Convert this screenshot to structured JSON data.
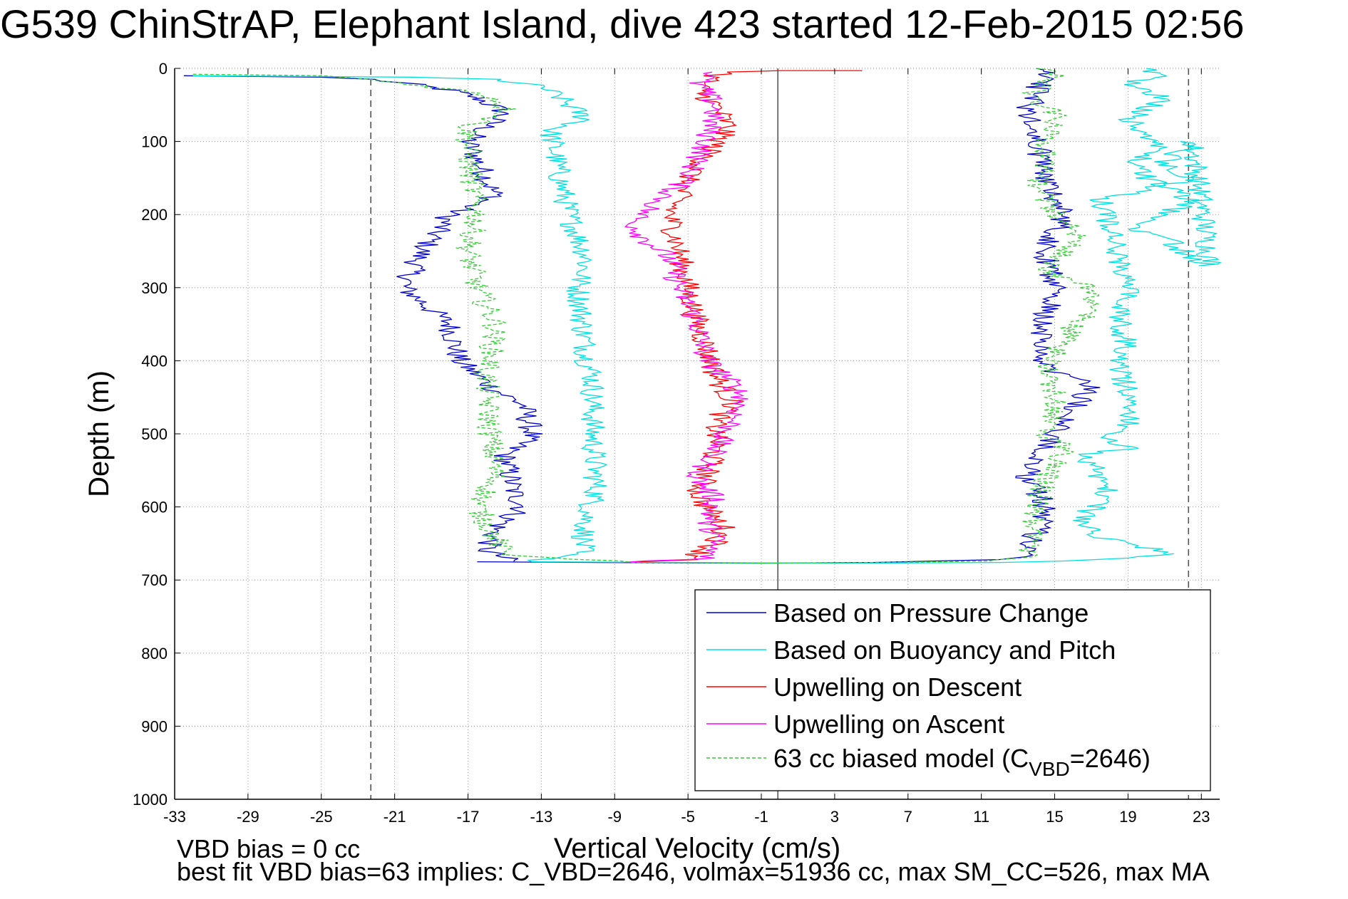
{
  "chart_data": {
    "type": "line",
    "title": "G539 ChinStrAP, Elephant Island, dive 423 started 12-Feb-2015 02:56",
    "xlabel": "Vertical Velocity (cm/s)",
    "ylabel": "Depth (m)",
    "xlim": [
      -33,
      24
    ],
    "ylim": [
      0,
      1000
    ],
    "y_reversed": true,
    "xticks": [
      -33,
      -29,
      -25,
      -21,
      -17,
      -13,
      -9,
      -5,
      -1,
      3,
      7,
      11,
      15,
      19,
      23
    ],
    "yticks": [
      0,
      100,
      200,
      300,
      400,
      500,
      600,
      700,
      800,
      900,
      1000
    ],
    "grid": true,
    "legend_position": "bottom-right",
    "reference_lines": {
      "dashed_x": [
        -22.3,
        22.3
      ],
      "solid_x": [
        -0.1
      ]
    },
    "series": [
      {
        "name": "Based on Pressure Change",
        "color": "#0000cc",
        "segments": [
          {
            "x": [
              -32.5,
              -25,
              -22.3,
              -20,
              -18,
              -16.5
            ],
            "y": [
              10,
              12,
              15,
              22,
              30,
              40
            ]
          },
          {
            "x": [
              -16.5,
              -15,
              -17,
              -16,
              -15.5,
              -18,
              -19.5,
              -20.5,
              -18,
              -17.5,
              -16.5,
              -15.5,
              -14,
              -13.5,
              -15,
              -14.5,
              -14,
              -15.5,
              -16,
              -14.5
            ],
            "y": [
              40,
              60,
              100,
              150,
              175,
              200,
              250,
              300,
              350,
              400,
              420,
              440,
              460,
              500,
              530,
              580,
              600,
              630,
              660,
              675
            ]
          },
          {
            "x": [
              -16.5,
              -10,
              -1,
              5,
              12,
              13.5
            ],
            "y": [
              675,
              676,
              677,
              676,
              672,
              668
            ]
          },
          {
            "x": [
              13.5,
              14.5,
              13.5,
              14.5,
              16,
              17,
              14.5,
              14,
              14.5,
              15,
              14.5,
              15.5,
              14.5,
              14,
              13.5,
              14,
              14.5,
              14
            ],
            "y": [
              668,
              600,
              560,
              520,
              470,
              430,
              410,
              380,
              340,
              300,
              250,
              200,
              150,
              100,
              60,
              30,
              10,
              0
            ]
          }
        ]
      },
      {
        "name": "Based on Buoyancy and Pitch",
        "color": "#00e0e0",
        "segments": [
          {
            "x": [
              -32,
              -20,
              -15.5,
              -13,
              -12,
              -11,
              -10.5,
              -12.5,
              -12,
              -11.5,
              -10.5,
              -11,
              -10.5,
              -10.2,
              -10.2,
              -10,
              -10.5,
              -10.8,
              -13.5
            ],
            "y": [
              10,
              12,
              15,
              25,
              40,
              60,
              70,
              85,
              150,
              200,
              260,
              300,
              400,
              420,
              500,
              580,
              610,
              660,
              675
            ]
          },
          {
            "x": [
              -13.5,
              -5,
              3,
              12,
              15.5,
              19,
              21.5
            ],
            "y": [
              675,
              676,
              677,
              676,
              674,
              670,
              664
            ]
          },
          {
            "x": [
              21.5,
              17,
              16.5,
              18,
              17.5,
              17,
              16.5,
              19,
              17.5,
              19,
              19,
              18.5,
              18.5,
              19,
              18.5,
              19,
              17.5,
              21,
              22.5,
              21,
              22.5,
              23.5,
              22,
              21,
              19.5,
              21,
              22.5,
              20,
              19,
              21,
              19,
              21,
              19,
              21,
              20
            ],
            "y": [
              664,
              640,
              610,
              590,
              560,
              540,
              530,
              520,
              505,
              490,
              440,
              410,
              395,
              380,
              345,
              300,
              180,
              160,
              150,
              130,
              100,
              270,
              250,
              230,
              220,
              200,
              180,
              150,
              130,
              110,
              70,
              40,
              20,
              8,
              0
            ]
          }
        ]
      },
      {
        "name": "Upwelling on Descent",
        "color": "#ff0000",
        "segments": [
          {
            "x": [
              4.5,
              0,
              -2.5,
              -3.5,
              -4.5,
              -3.5,
              -2.8,
              -4,
              -5,
              -6,
              -5.5,
              -5,
              -4.5,
              -4,
              -3.5,
              -2.5,
              -3.5,
              -3.5,
              -4,
              -4.5,
              -4,
              -3,
              -3.5,
              -4.5,
              -4.5,
              -8.5
            ],
            "y": [
              3,
              3,
              5,
              10,
              30,
              50,
              80,
              120,
              150,
              200,
              250,
              300,
              350,
              380,
              420,
              460,
              480,
              520,
              560,
              580,
              600,
              630,
              650,
              665,
              672,
              676
            ]
          }
        ]
      },
      {
        "name": "Upwelling on Ascent",
        "color": "#ff00ff",
        "segments": [
          {
            "x": [
              -3.5,
              -4.5,
              -3.5,
              -4,
              -5,
              -8,
              -7.5,
              -6,
              -5.5,
              -4.5,
              -4,
              -3,
              -2,
              -2.5,
              -3.5,
              -4.5,
              -3.5,
              -4,
              -3.5,
              -4,
              -8.5
            ],
            "y": [
              5,
              20,
              50,
              100,
              150,
              210,
              230,
              260,
              300,
              350,
              400,
              420,
              450,
              480,
              520,
              560,
              590,
              620,
              640,
              670,
              676
            ]
          }
        ]
      },
      {
        "name": "63 cc biased model (C",
        "label_sub": "VBD",
        "label_suffix": "=2646)",
        "color": "#33cc33",
        "segments": [
          {
            "x": [
              -32,
              -25,
              -22.5,
              -20,
              -17.5,
              -15.5,
              -14.8,
              -17,
              -17,
              -16.5,
              -17,
              -16.5,
              -15.5,
              -15.8,
              -16,
              -15.8,
              -15.5,
              -16.5,
              -15,
              -8,
              -1
            ],
            "y": [
              8,
              10,
              15,
              22,
              30,
              40,
              60,
              80,
              120,
              200,
              250,
              300,
              350,
              400,
              420,
              500,
              560,
              600,
              665,
              676,
              677
            ]
          },
          {
            "x": [
              -1,
              5,
              12,
              13.5,
              14,
              14.5,
              15.5,
              14.5,
              15,
              14.5,
              15.5,
              16.5,
              17,
              14.5,
              16.5,
              15,
              14,
              14.5,
              14.5,
              15,
              13.5,
              14.5,
              15,
              14
            ],
            "y": [
              677,
              676,
              674,
              668,
              600,
              560,
              520,
              500,
              450,
              410,
              370,
              340,
              300,
              280,
              220,
              200,
              160,
              140,
              100,
              60,
              40,
              20,
              10,
              0
            ]
          }
        ]
      }
    ],
    "annotations": [
      "VBD bias = 0 cc",
      "best fit VBD bias=63 implies: C_VBD=2646, volmax=51936 cc, max SM_CC=526, max MA"
    ]
  }
}
